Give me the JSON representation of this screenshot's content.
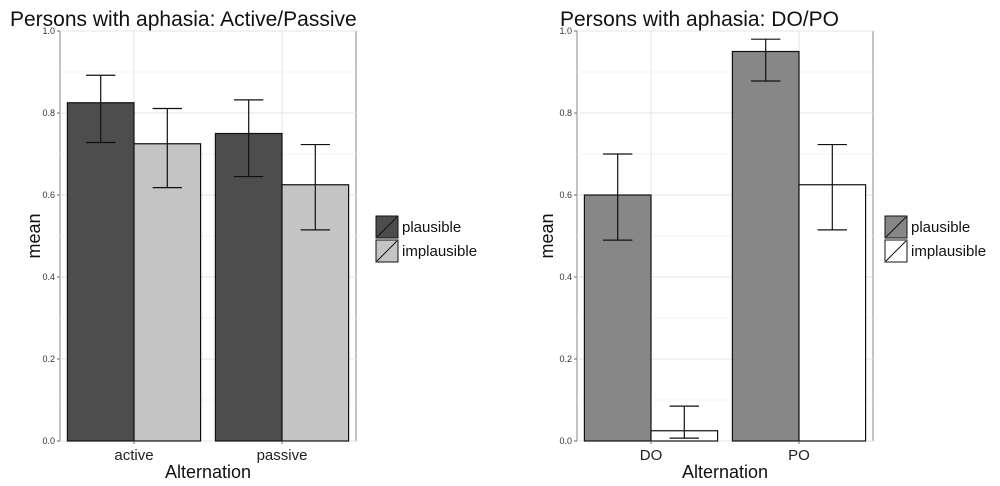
{
  "chart_data": [
    {
      "type": "bar",
      "title": "Persons with aphasia: Active/Passive",
      "xlabel": "Alternation",
      "ylabel": "mean",
      "ylim": [
        0,
        1.0
      ],
      "yticks": [
        "0.0",
        "0.2",
        "0.4",
        "0.6",
        "0.8",
        "1.0"
      ],
      "categories": [
        "active",
        "passive"
      ],
      "grid": true,
      "legend_position": "right",
      "series": [
        {
          "name": "plausible",
          "color": "#4d4d4d",
          "values": [
            0.825,
            0.75
          ],
          "err_low": [
            0.728,
            0.645
          ],
          "err_high": [
            0.892,
            0.832
          ]
        },
        {
          "name": "implausible",
          "color": "#c4c4c4",
          "values": [
            0.725,
            0.625
          ],
          "err_low": [
            0.618,
            0.515
          ],
          "err_high": [
            0.811,
            0.723
          ]
        }
      ]
    },
    {
      "type": "bar",
      "title": "Persons with aphasia: DO/PO",
      "xlabel": "Alternation",
      "ylabel": "mean",
      "ylim": [
        0,
        1.0
      ],
      "yticks": [
        "0.0",
        "0.2",
        "0.4",
        "0.6",
        "0.8",
        "1.0"
      ],
      "categories": [
        "DO",
        "PO"
      ],
      "grid": true,
      "legend_position": "right",
      "series": [
        {
          "name": "plausible",
          "color": "#878787",
          "values": [
            0.6,
            0.95
          ],
          "err_low": [
            0.49,
            0.878
          ],
          "err_high": [
            0.7,
            0.98
          ]
        },
        {
          "name": "implausible",
          "color": "#ffffff",
          "values": [
            0.025,
            0.625
          ],
          "err_low": [
            0.007,
            0.515
          ],
          "err_high": [
            0.085,
            0.723
          ]
        }
      ]
    }
  ]
}
